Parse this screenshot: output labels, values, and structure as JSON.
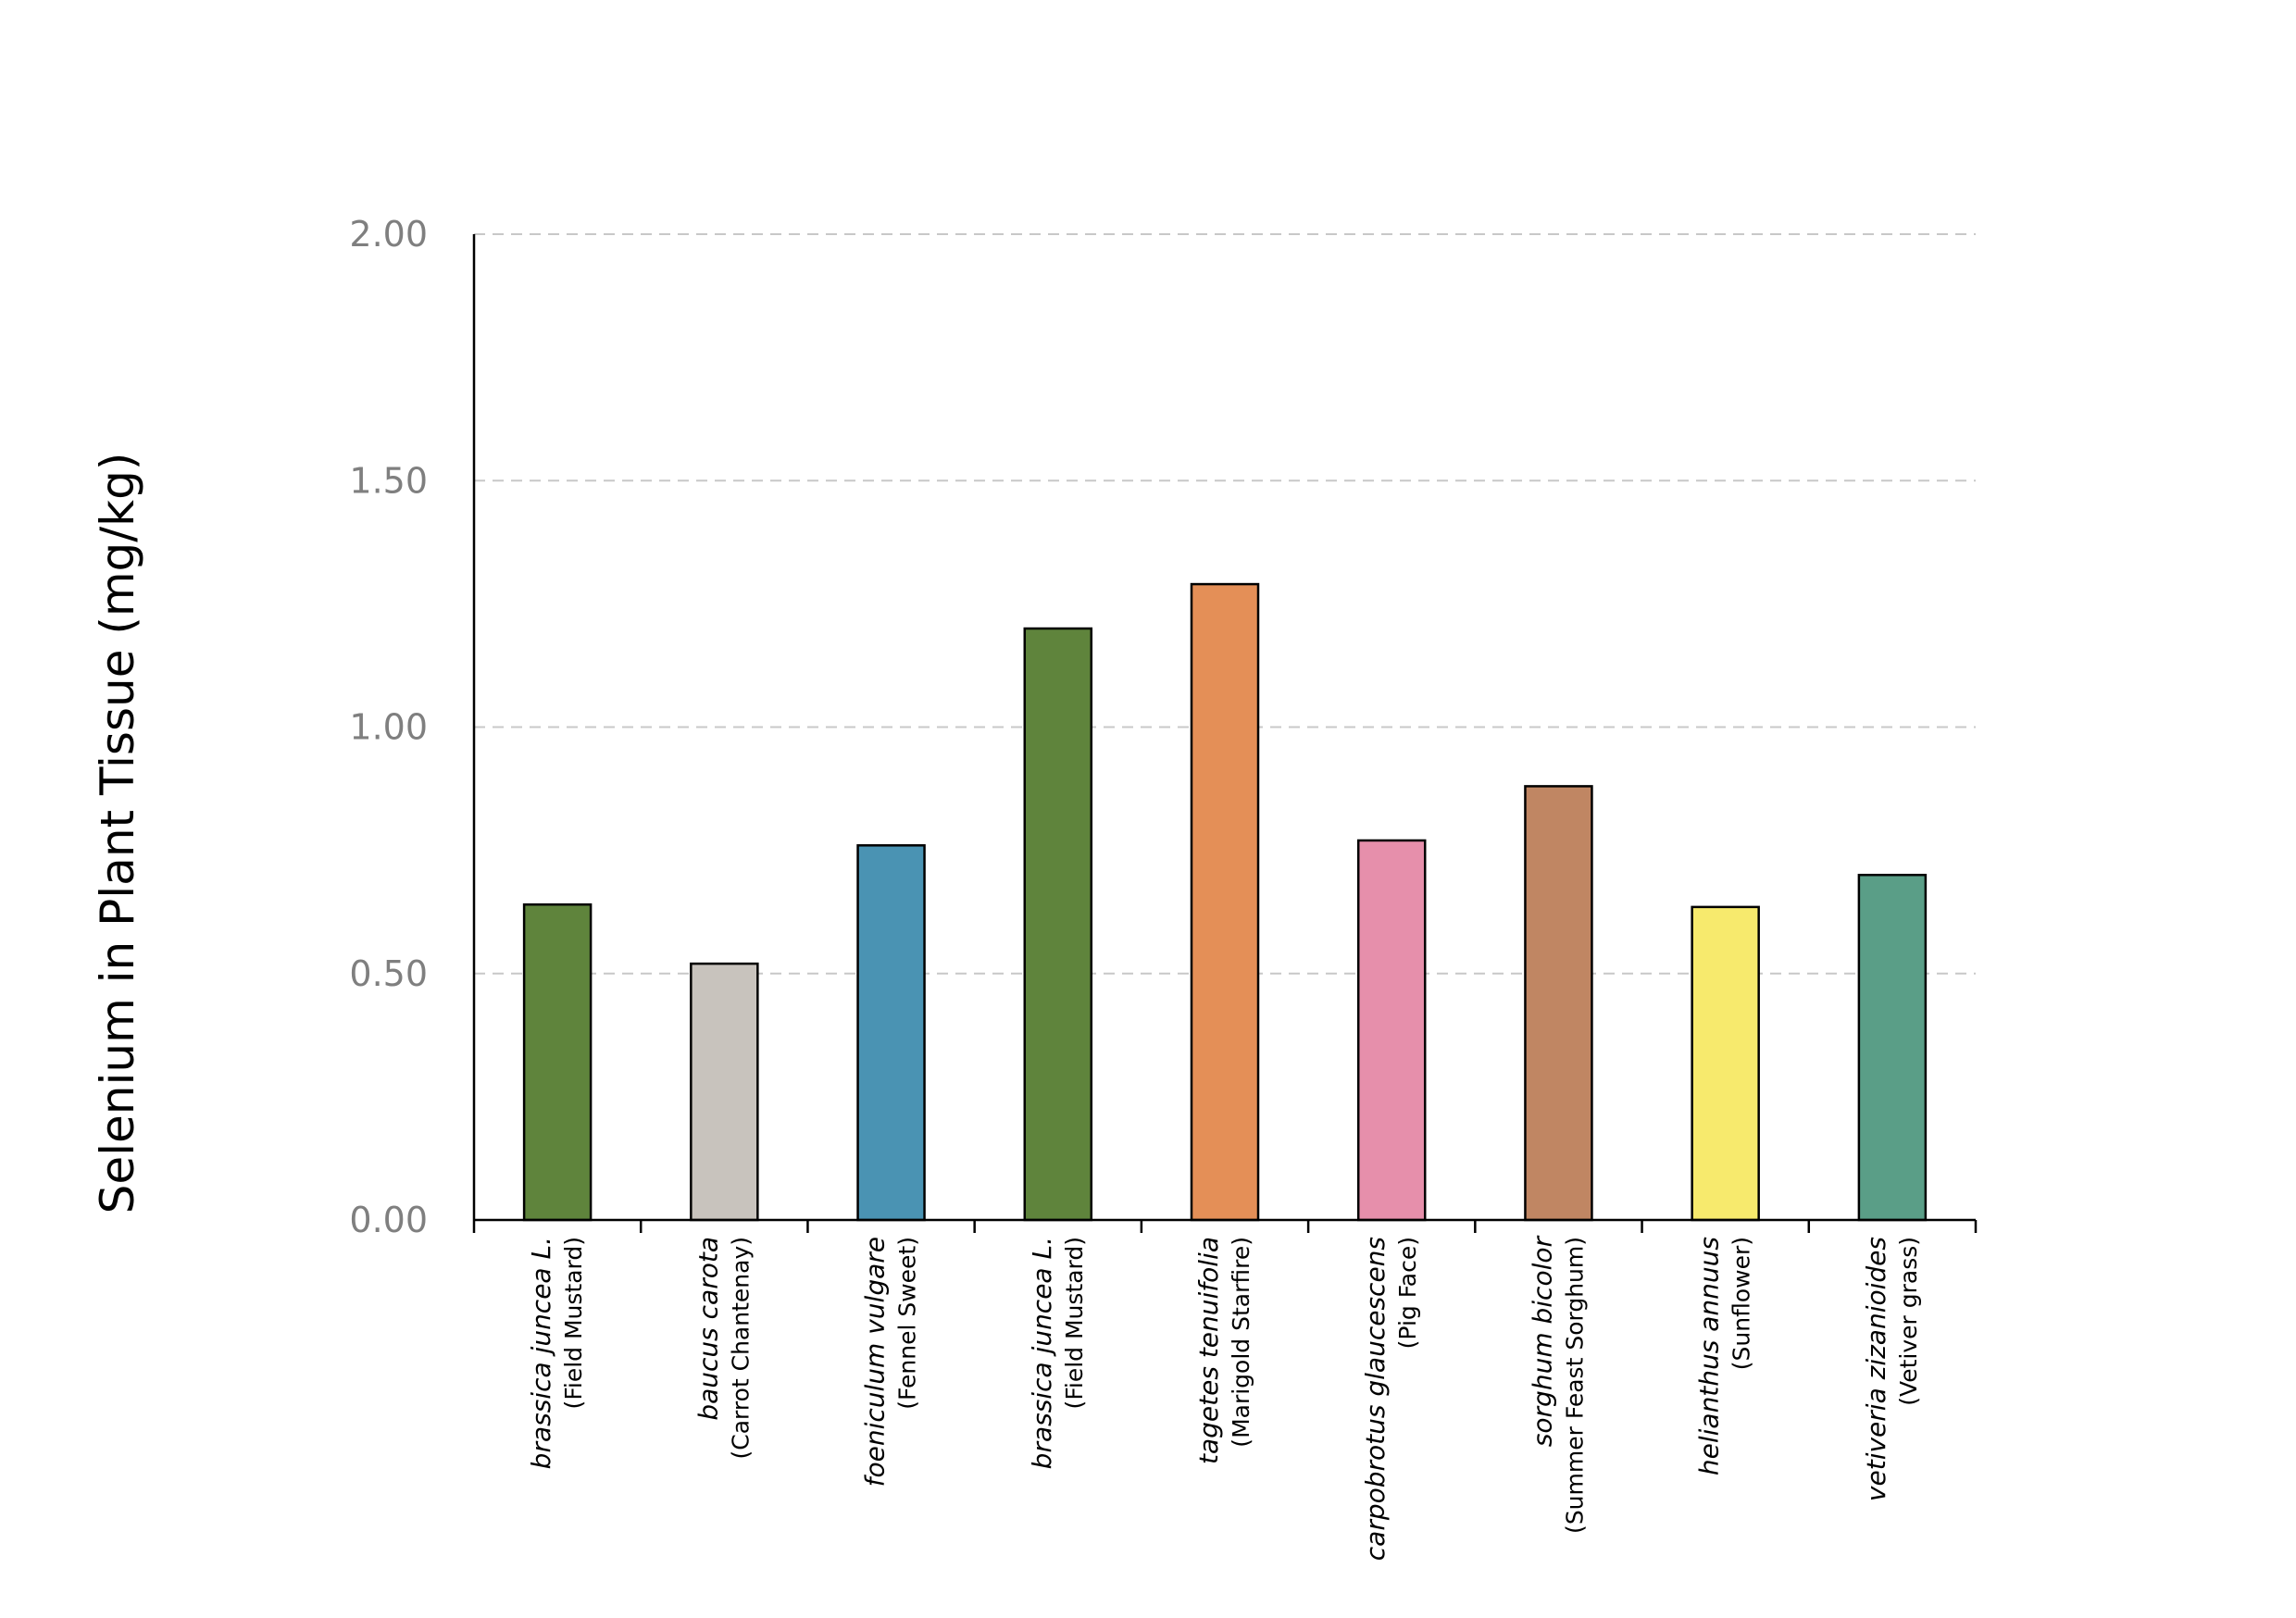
{
  "chart_data": {
    "type": "bar",
    "title": "",
    "xlabel": "",
    "ylabel": "Selenium in Plant Tissue (mg/kg)",
    "ylim": [
      0,
      2
    ],
    "yticks": [
      "0.00",
      "0.50",
      "1.00",
      "1.50",
      "2.00"
    ],
    "grid": true,
    "legend": "none",
    "categories": [
      {
        "scientific": "brassica juncea L.",
        "common": "(Field Mustard)",
        "value": 0.64,
        "color": "#5f843c"
      },
      {
        "scientific": "baucus carota",
        "common": "(Carrot Chantenay)",
        "value": 0.52,
        "color": "#c8c3bd"
      },
      {
        "scientific": "foeniculum vulgare",
        "common": "(Fennel Sweet)",
        "value": 0.76,
        "color": "#4a93b3"
      },
      {
        "scientific": "brassica juncea L.",
        "common": "(Field Mustard)",
        "value": 1.2,
        "color": "#5f843c"
      },
      {
        "scientific": "tagetes tenuifolia",
        "common": "(Marigold Starfire)",
        "value": 1.29,
        "color": "#e48f57"
      },
      {
        "scientific": "carpobrotus glaucescens",
        "common": "(Pig Face)",
        "value": 0.77,
        "color": "#e68fab"
      },
      {
        "scientific": "sorghum bicolor",
        "common": "(Summer Feast Sorghum)",
        "value": 0.88,
        "color": "#c08663"
      },
      {
        "scientific": "helianthus annuus",
        "common": "(Sunflower)",
        "value": 0.635,
        "color": "#f7ea6d"
      },
      {
        "scientific": "vetiveria zizanioides",
        "common": "(Vetiver grass)",
        "value": 0.7,
        "color": "#5a9e87"
      }
    ]
  }
}
